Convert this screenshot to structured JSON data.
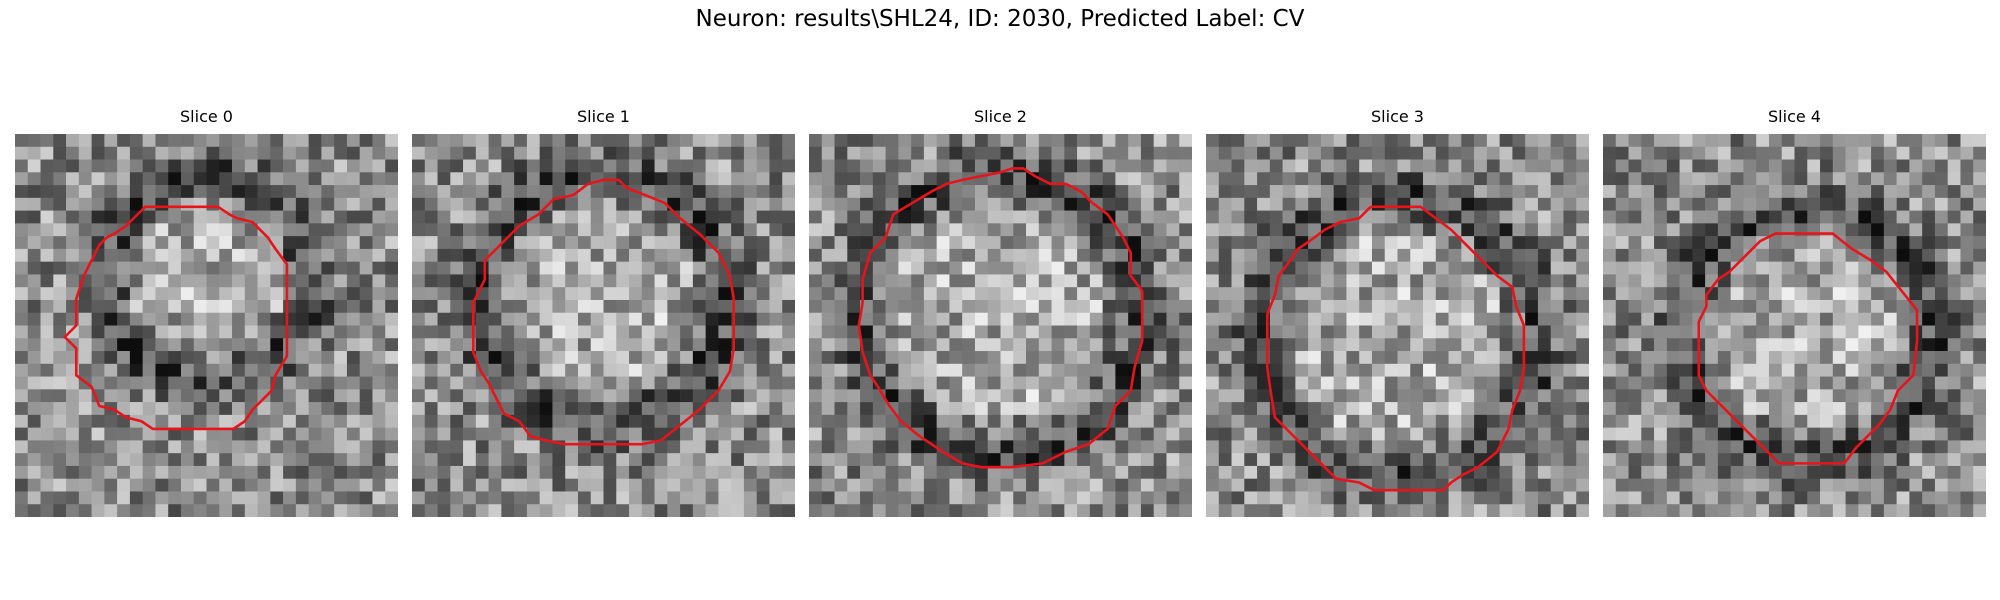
{
  "figure": {
    "title": "Neuron: results\\SHL24, ID: 2030, Predicted Label: CV"
  },
  "colors": {
    "contour": "#e8141c",
    "background": "#ffffff"
  },
  "panels": [
    {
      "title": "Slice 0",
      "seed": 11,
      "ring": [
        0.5,
        0.38,
        0.27
      ],
      "contour": [
        [
          0.47,
          0.19
        ],
        [
          0.5,
          0.19
        ],
        [
          0.53,
          0.19
        ],
        [
          0.56,
          0.21
        ],
        [
          0.58,
          0.22
        ],
        [
          0.62,
          0.23
        ],
        [
          0.66,
          0.27
        ],
        [
          0.68,
          0.3
        ],
        [
          0.71,
          0.34
        ],
        [
          0.71,
          0.42
        ],
        [
          0.71,
          0.5
        ],
        [
          0.71,
          0.58
        ],
        [
          0.68,
          0.63
        ],
        [
          0.67,
          0.67
        ],
        [
          0.65,
          0.69
        ],
        [
          0.62,
          0.72
        ],
        [
          0.6,
          0.75
        ],
        [
          0.57,
          0.77
        ],
        [
          0.47,
          0.77
        ],
        [
          0.36,
          0.77
        ],
        [
          0.33,
          0.75
        ],
        [
          0.29,
          0.74
        ],
        [
          0.26,
          0.72
        ],
        [
          0.22,
          0.71
        ],
        [
          0.2,
          0.66
        ],
        [
          0.16,
          0.63
        ],
        [
          0.16,
          0.56
        ],
        [
          0.13,
          0.53
        ],
        [
          0.16,
          0.5
        ],
        [
          0.16,
          0.43
        ],
        [
          0.18,
          0.37
        ],
        [
          0.2,
          0.33
        ],
        [
          0.22,
          0.29
        ],
        [
          0.24,
          0.27
        ],
        [
          0.26,
          0.26
        ],
        [
          0.29,
          0.24
        ],
        [
          0.31,
          0.22
        ],
        [
          0.34,
          0.19
        ],
        [
          0.4,
          0.19
        ]
      ]
    },
    {
      "title": "Slice 1",
      "seed": 23,
      "ring": [
        0.49,
        0.43,
        0.33
      ],
      "contour": [
        [
          0.46,
          0.13
        ],
        [
          0.5,
          0.12
        ],
        [
          0.54,
          0.12
        ],
        [
          0.56,
          0.14
        ],
        [
          0.61,
          0.16
        ],
        [
          0.66,
          0.18
        ],
        [
          0.7,
          0.22
        ],
        [
          0.75,
          0.26
        ],
        [
          0.8,
          0.31
        ],
        [
          0.83,
          0.37
        ],
        [
          0.84,
          0.43
        ],
        [
          0.84,
          0.5
        ],
        [
          0.84,
          0.56
        ],
        [
          0.83,
          0.62
        ],
        [
          0.8,
          0.67
        ],
        [
          0.75,
          0.72
        ],
        [
          0.7,
          0.76
        ],
        [
          0.65,
          0.8
        ],
        [
          0.6,
          0.81
        ],
        [
          0.5,
          0.81
        ],
        [
          0.4,
          0.81
        ],
        [
          0.35,
          0.8
        ],
        [
          0.31,
          0.79
        ],
        [
          0.28,
          0.75
        ],
        [
          0.24,
          0.73
        ],
        [
          0.22,
          0.69
        ],
        [
          0.2,
          0.65
        ],
        [
          0.18,
          0.62
        ],
        [
          0.16,
          0.57
        ],
        [
          0.16,
          0.5
        ],
        [
          0.16,
          0.44
        ],
        [
          0.19,
          0.38
        ],
        [
          0.19,
          0.33
        ],
        [
          0.24,
          0.28
        ],
        [
          0.28,
          0.24
        ],
        [
          0.33,
          0.21
        ],
        [
          0.37,
          0.17
        ],
        [
          0.42,
          0.16
        ]
      ]
    },
    {
      "title": "Slice 2",
      "seed": 37,
      "ring": [
        0.5,
        0.47,
        0.37
      ],
      "contour": [
        [
          0.5,
          0.1
        ],
        [
          0.53,
          0.09
        ],
        [
          0.56,
          0.09
        ],
        [
          0.59,
          0.11
        ],
        [
          0.63,
          0.13
        ],
        [
          0.67,
          0.13
        ],
        [
          0.71,
          0.15
        ],
        [
          0.74,
          0.18
        ],
        [
          0.78,
          0.21
        ],
        [
          0.82,
          0.27
        ],
        [
          0.84,
          0.31
        ],
        [
          0.84,
          0.37
        ],
        [
          0.87,
          0.41
        ],
        [
          0.87,
          0.48
        ],
        [
          0.87,
          0.54
        ],
        [
          0.85,
          0.61
        ],
        [
          0.84,
          0.67
        ],
        [
          0.8,
          0.71
        ],
        [
          0.78,
          0.77
        ],
        [
          0.73,
          0.81
        ],
        [
          0.67,
          0.83
        ],
        [
          0.61,
          0.86
        ],
        [
          0.53,
          0.87
        ],
        [
          0.45,
          0.87
        ],
        [
          0.4,
          0.86
        ],
        [
          0.35,
          0.83
        ],
        [
          0.29,
          0.79
        ],
        [
          0.24,
          0.75
        ],
        [
          0.21,
          0.71
        ],
        [
          0.18,
          0.66
        ],
        [
          0.16,
          0.63
        ],
        [
          0.14,
          0.57
        ],
        [
          0.13,
          0.5
        ],
        [
          0.14,
          0.44
        ],
        [
          0.14,
          0.38
        ],
        [
          0.16,
          0.31
        ],
        [
          0.2,
          0.27
        ],
        [
          0.22,
          0.21
        ],
        [
          0.27,
          0.18
        ],
        [
          0.32,
          0.15
        ],
        [
          0.36,
          0.13
        ],
        [
          0.4,
          0.12
        ],
        [
          0.45,
          0.11
        ]
      ]
    },
    {
      "title": "Slice 3",
      "seed": 53,
      "ring": [
        0.5,
        0.53,
        0.37
      ],
      "contour": [
        [
          0.43,
          0.19
        ],
        [
          0.5,
          0.19
        ],
        [
          0.56,
          0.19
        ],
        [
          0.6,
          0.22
        ],
        [
          0.64,
          0.25
        ],
        [
          0.68,
          0.29
        ],
        [
          0.72,
          0.33
        ],
        [
          0.76,
          0.37
        ],
        [
          0.8,
          0.4
        ],
        [
          0.81,
          0.45
        ],
        [
          0.83,
          0.5
        ],
        [
          0.83,
          0.56
        ],
        [
          0.83,
          0.61
        ],
        [
          0.82,
          0.67
        ],
        [
          0.8,
          0.72
        ],
        [
          0.79,
          0.77
        ],
        [
          0.76,
          0.83
        ],
        [
          0.71,
          0.87
        ],
        [
          0.67,
          0.89
        ],
        [
          0.64,
          0.91
        ],
        [
          0.62,
          0.93
        ],
        [
          0.53,
          0.93
        ],
        [
          0.44,
          0.93
        ],
        [
          0.4,
          0.91
        ],
        [
          0.34,
          0.9
        ],
        [
          0.3,
          0.86
        ],
        [
          0.26,
          0.82
        ],
        [
          0.22,
          0.78
        ],
        [
          0.18,
          0.74
        ],
        [
          0.17,
          0.68
        ],
        [
          0.16,
          0.61
        ],
        [
          0.16,
          0.54
        ],
        [
          0.16,
          0.47
        ],
        [
          0.18,
          0.42
        ],
        [
          0.19,
          0.37
        ],
        [
          0.22,
          0.33
        ],
        [
          0.24,
          0.3
        ],
        [
          0.27,
          0.28
        ],
        [
          0.31,
          0.25
        ],
        [
          0.35,
          0.23
        ],
        [
          0.4,
          0.22
        ]
      ]
    },
    {
      "title": "Slice 4",
      "seed": 71,
      "ring": [
        0.53,
        0.52,
        0.33
      ],
      "contour": [
        [
          0.5,
          0.26
        ],
        [
          0.55,
          0.26
        ],
        [
          0.6,
          0.26
        ],
        [
          0.65,
          0.3
        ],
        [
          0.7,
          0.33
        ],
        [
          0.74,
          0.36
        ],
        [
          0.78,
          0.41
        ],
        [
          0.82,
          0.46
        ],
        [
          0.82,
          0.54
        ],
        [
          0.81,
          0.63
        ],
        [
          0.77,
          0.67
        ],
        [
          0.75,
          0.72
        ],
        [
          0.72,
          0.76
        ],
        [
          0.69,
          0.79
        ],
        [
          0.66,
          0.82
        ],
        [
          0.63,
          0.86
        ],
        [
          0.55,
          0.86
        ],
        [
          0.46,
          0.86
        ],
        [
          0.42,
          0.82
        ],
        [
          0.38,
          0.78
        ],
        [
          0.34,
          0.74
        ],
        [
          0.3,
          0.7
        ],
        [
          0.27,
          0.67
        ],
        [
          0.25,
          0.63
        ],
        [
          0.25,
          0.56
        ],
        [
          0.25,
          0.49
        ],
        [
          0.27,
          0.45
        ],
        [
          0.27,
          0.42
        ],
        [
          0.3,
          0.38
        ],
        [
          0.33,
          0.36
        ],
        [
          0.36,
          0.33
        ],
        [
          0.38,
          0.31
        ],
        [
          0.41,
          0.28
        ],
        [
          0.45,
          0.26
        ]
      ]
    }
  ]
}
